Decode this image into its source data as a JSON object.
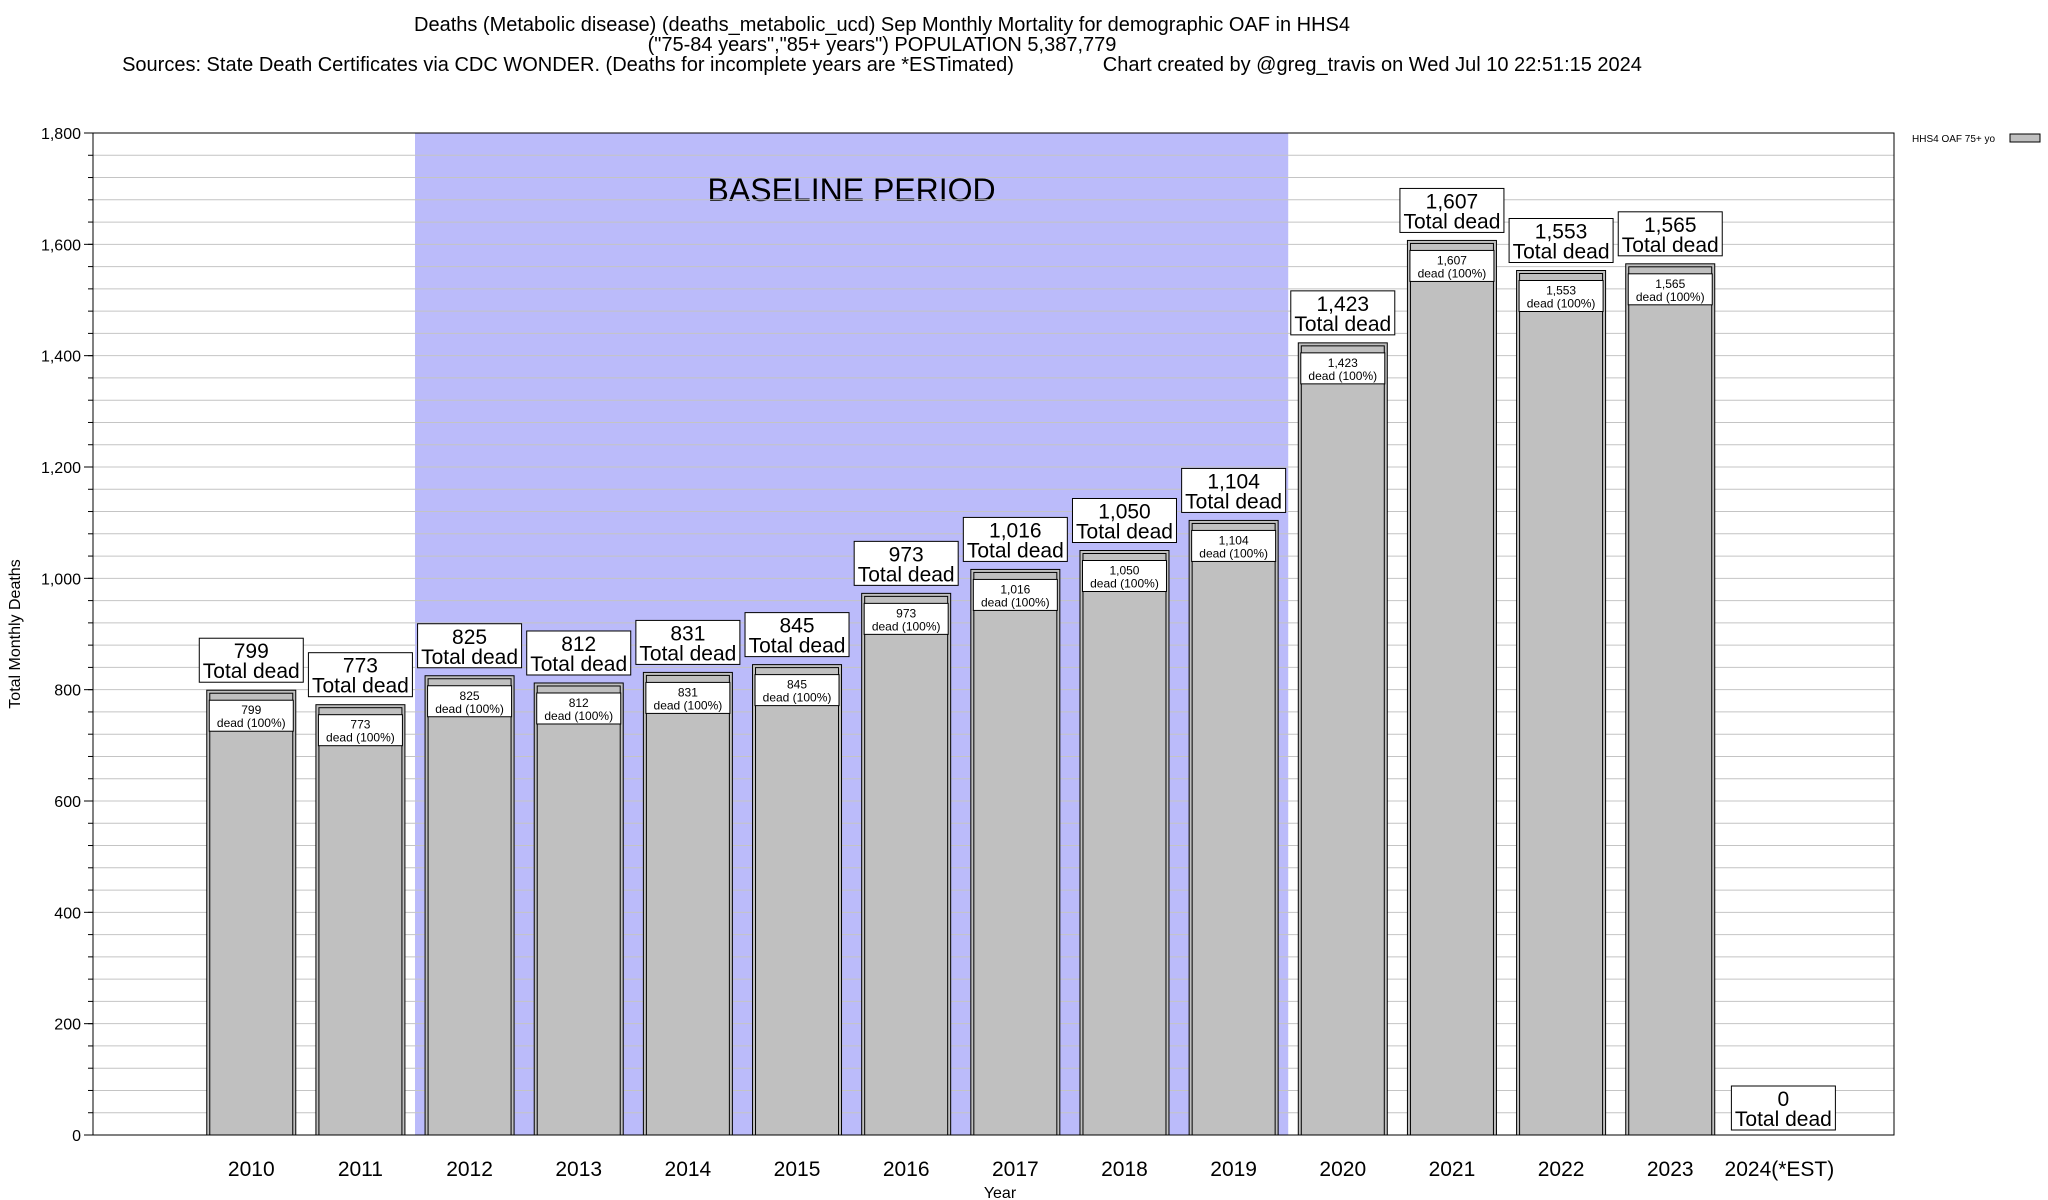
{
  "header": {
    "title_line1": "Deaths (Metabolic disease) (deaths_metabolic_ucd) Sep Monthly Mortality for demographic OAF in HHS4",
    "title_line2": "(\"75-84 years\",\"85+ years\") POPULATION 5,387,779",
    "title_line3": "Sources: State Death Certificates via CDC WONDER. (Deaths for incomplete years are *ESTimated)                Chart created by @greg_travis on Wed Jul 10 22:51:15 2024"
  },
  "chart_data": {
    "type": "bar",
    "categories": [
      "2010",
      "2011",
      "2012",
      "2013",
      "2014",
      "2015",
      "2016",
      "2017",
      "2018",
      "2019",
      "2020",
      "2021",
      "2022",
      "2023",
      "2024(*EST)"
    ],
    "values": [
      799,
      773,
      825,
      812,
      831,
      845,
      973,
      1016,
      1050,
      1104,
      1423,
      1607,
      1553,
      1565,
      0
    ],
    "value_labels": [
      "799",
      "773",
      "825",
      "812",
      "831",
      "845",
      "973",
      "1,016",
      "1,050",
      "1,104",
      "1,423",
      "1,607",
      "1,553",
      "1,565",
      "0"
    ],
    "total_suffix": "Total dead",
    "inner_suffix": "dead (100%)",
    "xlabel": "Year",
    "ylabel": "Total Monthly Deaths",
    "ylim": [
      0,
      1800
    ],
    "yticks": [
      0,
      200,
      400,
      600,
      800,
      1000,
      1200,
      1400,
      1600,
      1800
    ],
    "ytick_labels": [
      "0",
      "200",
      "400",
      "600",
      "800",
      "1,000",
      "1,200",
      "1,400",
      "1,600",
      "1,800"
    ],
    "minor_grid_step": 40,
    "grid": true,
    "baseline": {
      "label": "BASELINE PERIOD",
      "start": "2012",
      "end": "2019",
      "color": "#bbbbfa"
    },
    "bar_color": "#c0c0c0",
    "legend": {
      "label": "HHS4 OAF 75+ yo",
      "position": "top-right"
    }
  }
}
